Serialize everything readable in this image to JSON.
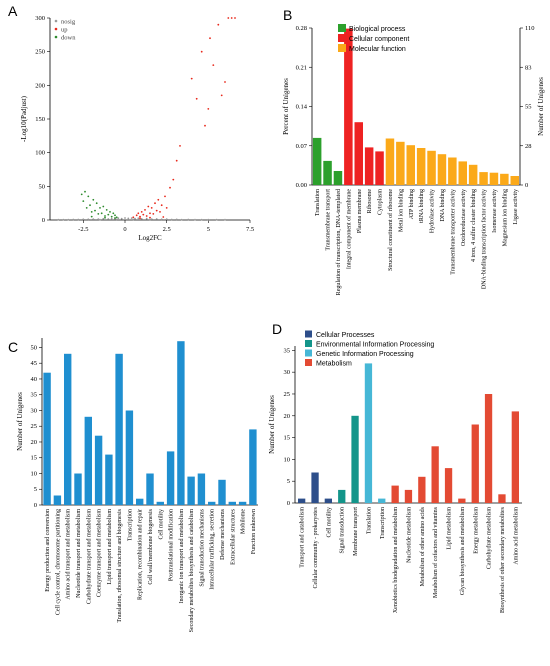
{
  "panels": {
    "a": "A",
    "b": "B",
    "c": "C",
    "d": "D"
  },
  "chart_data": [
    {
      "panel": "A",
      "type": "scatter",
      "xlabel": "Log2FC",
      "ylabel": "-Log10(Padjust)",
      "xlim": [
        -4.5,
        7.5
      ],
      "ylim": [
        0,
        300
      ],
      "xticks": [
        "-2.5",
        "0",
        "2.5",
        "5",
        "7.5"
      ],
      "yticks": [
        "0",
        "50",
        "100",
        "150",
        "200",
        "250",
        "300"
      ],
      "legend_position": "top-left",
      "series": [
        {
          "name": "nosig",
          "color": "#9a9a9a",
          "points": [
            [
              -4.0,
              0.4
            ],
            [
              -3.7,
              0.6
            ],
            [
              -3.4,
              0.5
            ],
            [
              -3.1,
              0.8
            ],
            [
              -2.8,
              0.7
            ],
            [
              -2.5,
              1.1
            ],
            [
              -2.2,
              1.0
            ],
            [
              -1.9,
              1.4
            ],
            [
              -1.6,
              1.2
            ],
            [
              -1.3,
              1.8
            ],
            [
              -1.0,
              1.5
            ],
            [
              -0.8,
              2.2
            ],
            [
              -0.6,
              1.9
            ],
            [
              -0.4,
              2.6
            ],
            [
              -0.2,
              2.0
            ],
            [
              0.0,
              3.0
            ],
            [
              0.2,
              2.4
            ],
            [
              0.4,
              2.8
            ],
            [
              0.6,
              2.1
            ],
            [
              0.8,
              2.5
            ],
            [
              1.0,
              1.7
            ],
            [
              1.3,
              1.9
            ],
            [
              1.6,
              1.3
            ],
            [
              1.9,
              1.5
            ],
            [
              2.2,
              1.0
            ],
            [
              2.5,
              1.2
            ],
            [
              2.8,
              0.8
            ],
            [
              3.1,
              0.9
            ],
            [
              3.4,
              0.6
            ],
            [
              3.8,
              0.7
            ],
            [
              4.2,
              0.5
            ],
            [
              4.6,
              0.6
            ],
            [
              5.0,
              0.4
            ],
            [
              5.5,
              0.5
            ],
            [
              6.0,
              0.4
            ],
            [
              -0.5,
              0.9
            ],
            [
              0.5,
              0.8
            ],
            [
              -1.5,
              0.6
            ],
            [
              1.5,
              0.7
            ]
          ]
        },
        {
          "name": "up",
          "color": "#e8291c",
          "points": [
            [
              0.5,
              4
            ],
            [
              0.7,
              7
            ],
            [
              0.8,
              10
            ],
            [
              0.9,
              5
            ],
            [
              1.0,
              12
            ],
            [
              1.1,
              8
            ],
            [
              1.2,
              15
            ],
            [
              1.3,
              6
            ],
            [
              1.4,
              20
            ],
            [
              1.5,
              10
            ],
            [
              1.6,
              18
            ],
            [
              1.7,
              9
            ],
            [
              1.8,
              25
            ],
            [
              1.9,
              14
            ],
            [
              2.0,
              30
            ],
            [
              2.1,
              12
            ],
            [
              2.2,
              22
            ],
            [
              2.4,
              35
            ],
            [
              2.5,
              18
            ],
            [
              2.7,
              48
            ],
            [
              2.9,
              60
            ],
            [
              3.1,
              88
            ],
            [
              3.3,
              110
            ],
            [
              4.0,
              210
            ],
            [
              4.3,
              180
            ],
            [
              4.6,
              250
            ],
            [
              4.8,
              140
            ],
            [
              5.0,
              165
            ],
            [
              5.1,
              270
            ],
            [
              5.3,
              230
            ],
            [
              5.6,
              290
            ],
            [
              5.8,
              185
            ],
            [
              6.2,
              300
            ],
            [
              6.4,
              300
            ],
            [
              6.6,
              300
            ],
            [
              6.0,
              205
            ],
            [
              0.9,
              2.5
            ],
            [
              1.5,
              3.5
            ],
            [
              2.3,
              4.5
            ]
          ]
        },
        {
          "name": "down",
          "color": "#2e8b2e",
          "points": [
            [
              -0.5,
              4
            ],
            [
              -0.6,
              7
            ],
            [
              -0.7,
              10
            ],
            [
              -0.8,
              5
            ],
            [
              -0.9,
              12
            ],
            [
              -1.0,
              8
            ],
            [
              -1.1,
              15
            ],
            [
              -1.2,
              6
            ],
            [
              -1.3,
              20
            ],
            [
              -1.4,
              10
            ],
            [
              -1.5,
              18
            ],
            [
              -1.6,
              9
            ],
            [
              -1.7,
              25
            ],
            [
              -1.8,
              14
            ],
            [
              -1.9,
              30
            ],
            [
              -2.0,
              12
            ],
            [
              -2.1,
              22
            ],
            [
              -2.2,
              35
            ],
            [
              -2.3,
              18
            ],
            [
              -2.4,
              42
            ],
            [
              -2.5,
              28
            ],
            [
              -2.6,
              38
            ],
            [
              -0.6,
              3
            ],
            [
              -1.2,
              3.2
            ],
            [
              -2.0,
              5
            ]
          ]
        }
      ]
    },
    {
      "panel": "B",
      "type": "bar",
      "ylabel": "Percent of Unigenes",
      "y2label": "Number of Unigenes",
      "ylim": [
        0,
        0.28
      ],
      "yticks": [
        "0.00",
        "0.07",
        "0.14",
        "0.21",
        "0.28"
      ],
      "y2ticks": [
        "0",
        "28",
        "55",
        "83",
        "110"
      ],
      "legend_position": "top-left",
      "legend": [
        {
          "name": "Biological process",
          "color": "#2ca02c"
        },
        {
          "name": "Cellular component",
          "color": "#ee2222"
        },
        {
          "name": "Molecular function",
          "color": "#fba919"
        }
      ],
      "categories": [
        "Translation",
        "Transmembrane transport",
        "Regulation of transcription, DNA-templated",
        "Integral component of membrane",
        "Plasma membrane",
        "Ribosome",
        "Cytoplasm",
        "Structural constituent of ribosome",
        "Metal ion binding",
        "ATP binding",
        "tRNA binding",
        "Hydrolase activity",
        "DNA binding",
        "Transmembrane transporter activity",
        "Oxidoreductase activity",
        "4 iron, 4 sulfur cluster binding",
        "DNA-binding transcription factor activity",
        "Isomerase activity",
        "Magnesium ion binding",
        "Ligase activity"
      ],
      "groups": [
        0,
        0,
        0,
        1,
        1,
        1,
        1,
        2,
        2,
        2,
        2,
        2,
        2,
        2,
        2,
        2,
        2,
        2,
        2,
        2
      ],
      "values": [
        0.084,
        0.043,
        0.025,
        0.279,
        0.112,
        0.067,
        0.06,
        0.083,
        0.077,
        0.071,
        0.066,
        0.061,
        0.055,
        0.049,
        0.042,
        0.036,
        0.023,
        0.022,
        0.02,
        0.016
      ]
    },
    {
      "panel": "C",
      "type": "bar",
      "ylabel": "Number of Unigenes",
      "ylim": [
        0,
        53
      ],
      "yticks": [
        "0",
        "5",
        "10",
        "15",
        "20",
        "25",
        "30",
        "35",
        "40",
        "45",
        "50"
      ],
      "color": "#1f8fd0",
      "categories": [
        "Energy production and conversion",
        "Cell cycle control, chromosome partitioning",
        "Amino acid transport and metabolism",
        "Nucleotide transport and metabolism",
        "Carbohydrate transport and metabolism",
        "Coenzyme transport and metabolism",
        "Lipid transport and metabolism",
        "Translation, ribosomal structure and biogenesis",
        "Transcription",
        "Replication, recombination and repair",
        "Cell wall/membrane biogenesis",
        "Cell motility",
        "Posttranslational modification",
        "Inorganic ion transport and metabolism",
        "Secondary metabolites biosynthesis and catabolism",
        "Signal transduction mechanisms",
        "Intracellular trafficking, secretion",
        "Defense mechanisms",
        "Extracellular structures",
        "Mobilome",
        "Function unknown"
      ],
      "values": [
        42,
        3,
        48,
        10,
        28,
        22,
        16,
        48,
        30,
        2,
        10,
        1,
        17,
        52,
        9,
        10,
        1,
        8,
        1,
        1,
        24
      ]
    },
    {
      "panel": "D",
      "type": "bar",
      "ylabel": "Number of Unigenes",
      "ylim": [
        0,
        36
      ],
      "yticks": [
        "0",
        "5",
        "10",
        "15",
        "20",
        "25",
        "30",
        "35"
      ],
      "legend_position": "top-left",
      "legend": [
        {
          "name": "Cellular Processes",
          "color": "#2d4e8a"
        },
        {
          "name": "Environmental Information Processing",
          "color": "#13958a"
        },
        {
          "name": "Genetic Information Processing",
          "color": "#46b7d6"
        },
        {
          "name": "Metabolism",
          "color": "#e34a33"
        }
      ],
      "categories": [
        "Transport and catabolism",
        "Cellular community - prokaryotes",
        "Cell motility",
        "Signal transduction",
        "Membrane transport",
        "Translation",
        "Transcription",
        "Xenobiotics biodegradation and metabolism",
        "Nucleotide metabolism",
        "Metabolism of other amino acids",
        "Metabolism of cofactors and vitamins",
        "Lipid metabolism",
        "Glycan biosynthesis and metabolism",
        "Energy metabolism",
        "Carbohydrate metabolism",
        "Biosynthesis of other secondary metabolites",
        "Amino acid metabolism"
      ],
      "groups": [
        0,
        0,
        0,
        1,
        1,
        2,
        2,
        3,
        3,
        3,
        3,
        3,
        3,
        3,
        3,
        3,
        3
      ],
      "values": [
        1,
        7,
        1,
        3,
        20,
        32,
        1,
        4,
        3,
        6,
        13,
        8,
        1,
        18,
        25,
        2,
        21
      ]
    }
  ]
}
